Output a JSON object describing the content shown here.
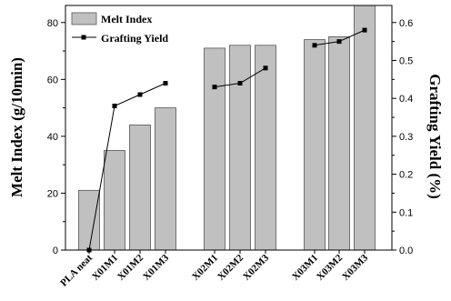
{
  "chart_data": {
    "type": "bar",
    "categories": [
      "PLA neat",
      "X01M1",
      "X01M2",
      "X01M3",
      "X02M1",
      "X02M2",
      "X02M3",
      "X03M1",
      "X03M2",
      "X03M3"
    ],
    "series": [
      {
        "name": "Melt Index",
        "type": "bar",
        "axis": "left",
        "values": [
          21,
          35,
          44,
          50,
          71,
          72,
          72,
          74,
          75,
          86
        ],
        "color": "#c0c0c0"
      },
      {
        "name": "Grafting Yield",
        "type": "line",
        "axis": "right",
        "values": [
          0.0,
          0.38,
          0.41,
          0.44,
          0.43,
          0.44,
          0.48,
          0.54,
          0.55,
          0.58
        ],
        "color": "#000000",
        "segments": [
          [
            0,
            3
          ],
          [
            4,
            6
          ],
          [
            7,
            9
          ]
        ]
      }
    ],
    "groups": [
      [
        0,
        1,
        2,
        3
      ],
      [
        4,
        5,
        6
      ],
      [
        7,
        8,
        9
      ]
    ],
    "ylabel": "Melt Index (g/10min)",
    "y2label": "Grafting Yield (%)",
    "ylim": [
      0,
      86
    ],
    "y2lim": [
      0,
      0.645
    ],
    "yticks": [
      0,
      20,
      40,
      60,
      80
    ],
    "y2ticks": [
      0.0,
      0.1,
      0.2,
      0.3,
      0.4,
      0.5,
      0.6
    ],
    "legend": {
      "position": "top-left",
      "entries": [
        "Melt Index",
        "Grafting Yield"
      ]
    },
    "grid": false
  }
}
